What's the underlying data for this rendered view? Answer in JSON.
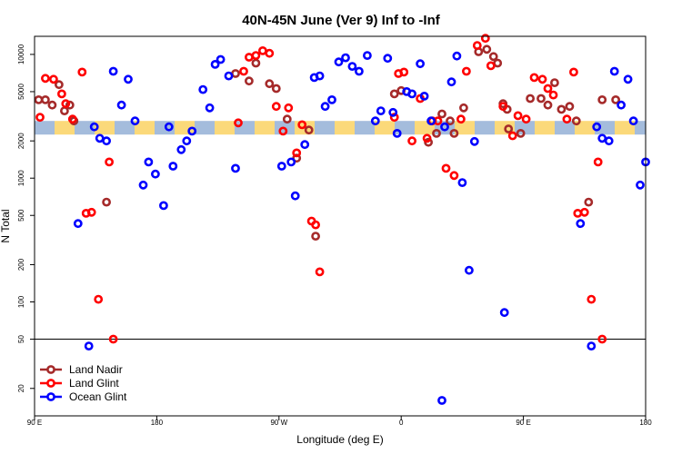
{
  "chart_data": {
    "type": "scatter",
    "title": "40N-45N June (Ver 9)   Inf to -Inf",
    "xlabel": "Longitude (deg E)",
    "ylabel": "N Total",
    "x_axis": {
      "domain": [
        0,
        360
      ],
      "note_domain": "degrees eastward starting at 90 E",
      "ticks": [
        {
          "x": 0,
          "label": "90 E"
        },
        {
          "x": 90,
          "label": "180"
        },
        {
          "x": 180,
          "label": "90 W"
        },
        {
          "x": 270,
          "label": "0"
        },
        {
          "x": 360,
          "label": "90 E"
        },
        {
          "x": 450,
          "label": "180"
        }
      ],
      "xlim": [
        0,
        450
      ]
    },
    "y_axis": {
      "scale": "log",
      "ylim": [
        12,
        14000
      ],
      "ticks": [
        20,
        50,
        100,
        200,
        500,
        1000,
        2000,
        5000,
        10000
      ]
    },
    "reference_line_y": 50,
    "band": {
      "y_low": 2250,
      "y_high": 2900,
      "colors": [
        "#a4bcdc",
        "#fbd97a"
      ]
    },
    "legend": {
      "position": "bottom-left"
    },
    "series": [
      {
        "name": "Land Nadir",
        "color": "#a52a2a",
        "points": [
          [
            3,
            4300
          ],
          [
            8,
            4300
          ],
          [
            13,
            3900
          ],
          [
            18,
            5700
          ],
          [
            22,
            3500
          ],
          [
            26,
            3900
          ],
          [
            29,
            2900
          ],
          [
            53,
            640
          ],
          [
            148,
            7000
          ],
          [
            158,
            6100
          ],
          [
            163,
            8500
          ],
          [
            173,
            5800
          ],
          [
            178,
            5300
          ],
          [
            186,
            3000
          ],
          [
            193,
            1450
          ],
          [
            202,
            2450
          ],
          [
            207,
            340
          ],
          [
            265,
            4800
          ],
          [
            270,
            5100
          ],
          [
            290,
            1950
          ],
          [
            296,
            2300
          ],
          [
            300,
            3300
          ],
          [
            306,
            2900
          ],
          [
            309,
            2300
          ],
          [
            316,
            3700
          ],
          [
            327,
            10500
          ],
          [
            333,
            11000
          ],
          [
            338,
            9600
          ],
          [
            341,
            8500
          ],
          [
            345,
            4000
          ],
          [
            348,
            3600
          ],
          [
            349,
            2500
          ],
          [
            358,
            2300
          ],
          [
            365,
            4400
          ],
          [
            373,
            4400
          ],
          [
            378,
            3900
          ],
          [
            383,
            5900
          ],
          [
            388,
            3600
          ],
          [
            394,
            3800
          ],
          [
            399,
            2900
          ],
          [
            408,
            640
          ],
          [
            418,
            4300
          ],
          [
            428,
            4300
          ]
        ]
      },
      {
        "name": "Land Glint",
        "color": "#ff0000",
        "points": [
          [
            4,
            3100
          ],
          [
            8,
            6400
          ],
          [
            14,
            6300
          ],
          [
            20,
            4800
          ],
          [
            23,
            4000
          ],
          [
            28,
            3000
          ],
          [
            35,
            7200
          ],
          [
            38,
            520
          ],
          [
            42,
            530
          ],
          [
            47,
            105
          ],
          [
            55,
            1350
          ],
          [
            58,
            50
          ],
          [
            150,
            2800
          ],
          [
            154,
            7300
          ],
          [
            158,
            9500
          ],
          [
            163,
            9800
          ],
          [
            168,
            10700
          ],
          [
            173,
            10200
          ],
          [
            178,
            3800
          ],
          [
            183,
            2400
          ],
          [
            187,
            3700
          ],
          [
            193,
            1600
          ],
          [
            197,
            2700
          ],
          [
            204,
            450
          ],
          [
            207,
            420
          ],
          [
            210,
            175
          ],
          [
            265,
            3100
          ],
          [
            268,
            7000
          ],
          [
            272,
            7200
          ],
          [
            278,
            2000
          ],
          [
            284,
            4400
          ],
          [
            289,
            2100
          ],
          [
            293,
            2900
          ],
          [
            297,
            2900
          ],
          [
            303,
            1200
          ],
          [
            309,
            1050
          ],
          [
            314,
            3000
          ],
          [
            318,
            7300
          ],
          [
            326,
            11800
          ],
          [
            332,
            13500
          ],
          [
            336,
            8100
          ],
          [
            345,
            3800
          ],
          [
            352,
            2200
          ],
          [
            356,
            3200
          ],
          [
            362,
            3000
          ],
          [
            368,
            6500
          ],
          [
            374,
            6300
          ],
          [
            378,
            5300
          ],
          [
            382,
            4700
          ],
          [
            392,
            3000
          ],
          [
            397,
            7200
          ],
          [
            400,
            520
          ],
          [
            405,
            530
          ],
          [
            410,
            105
          ],
          [
            415,
            1350
          ],
          [
            418,
            50
          ]
        ]
      },
      {
        "name": "Ocean Glint",
        "color": "#0000ff",
        "points": [
          [
            32,
            430
          ],
          [
            40,
            44
          ],
          [
            44,
            2600
          ],
          [
            48,
            2100
          ],
          [
            53,
            2000
          ],
          [
            58,
            7300
          ],
          [
            64,
            3900
          ],
          [
            69,
            6300
          ],
          [
            74,
            2900
          ],
          [
            80,
            880
          ],
          [
            84,
            1350
          ],
          [
            89,
            1080
          ],
          [
            95,
            600
          ],
          [
            99,
            2600
          ],
          [
            102,
            1250
          ],
          [
            108,
            1700
          ],
          [
            112,
            2000
          ],
          [
            116,
            2400
          ],
          [
            124,
            5200
          ],
          [
            129,
            3700
          ],
          [
            133,
            8300
          ],
          [
            137,
            9100
          ],
          [
            143,
            6700
          ],
          [
            148,
            1200
          ],
          [
            182,
            1250
          ],
          [
            189,
            1350
          ],
          [
            192,
            720
          ],
          [
            199,
            1870
          ],
          [
            206,
            6500
          ],
          [
            210,
            6700
          ],
          [
            214,
            3800
          ],
          [
            219,
            4300
          ],
          [
            224,
            8700
          ],
          [
            229,
            9400
          ],
          [
            234,
            8000
          ],
          [
            239,
            7300
          ],
          [
            245,
            9800
          ],
          [
            251,
            2900
          ],
          [
            255,
            3500
          ],
          [
            260,
            9300
          ],
          [
            264,
            3400
          ],
          [
            267,
            2300
          ],
          [
            274,
            5000
          ],
          [
            278,
            4800
          ],
          [
            284,
            8400
          ],
          [
            287,
            4600
          ],
          [
            292,
            2900
          ],
          [
            300,
            16
          ],
          [
            302,
            2600
          ],
          [
            307,
            6000
          ],
          [
            311,
            9700
          ],
          [
            315,
            920
          ],
          [
            320,
            180
          ],
          [
            324,
            1980
          ],
          [
            346,
            82
          ],
          [
            402,
            430
          ],
          [
            410,
            44
          ],
          [
            414,
            2600
          ],
          [
            418,
            2100
          ],
          [
            423,
            2000
          ],
          [
            427,
            7300
          ],
          [
            432,
            3900
          ],
          [
            437,
            6300
          ],
          [
            441,
            2900
          ],
          [
            446,
            880
          ],
          [
            450,
            1350
          ]
        ]
      }
    ]
  }
}
